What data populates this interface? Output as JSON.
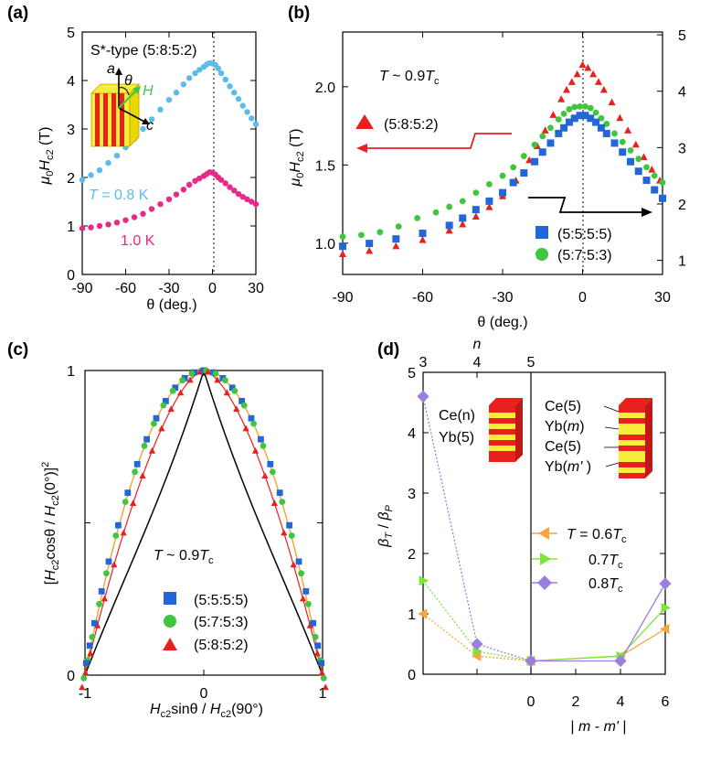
{
  "colors": {
    "sky": "#5bbcea",
    "magenta": "#e8288a",
    "red": "#e8211c",
    "green": "#3ec63e",
    "blue": "#2366d8",
    "orange": "#f4a83c",
    "lime": "#7de53a",
    "violet": "#9b7fe0",
    "black": "#000000",
    "yellow": "#f6ee3a"
  },
  "chart_data": [
    {
      "panel": "(a)",
      "type": "scatter",
      "title": "S*-type (5:8:5:2)",
      "xlabel": "θ (deg.)",
      "ylabel_parts": [
        "μ",
        "0",
        "H",
        "c2",
        " (T)"
      ],
      "xlim": [
        -90,
        30
      ],
      "ylim": [
        0,
        5
      ],
      "xticks": [
        "-90",
        "-60",
        "-30",
        "0",
        "30"
      ],
      "yticks": [
        "0",
        "1",
        "2",
        "3",
        "4",
        "5"
      ],
      "inset_axes": [
        "a",
        "θ",
        "H",
        "c"
      ],
      "series": [
        {
          "name": "T = 0.8 K",
          "label_parts": [
            "T",
            " = 0.8 K"
          ],
          "color": "sky",
          "x": [
            -90,
            -84,
            -78,
            -72,
            -66,
            -60,
            -54,
            -48,
            -42,
            -36,
            -30,
            -25,
            -20,
            -16,
            -12,
            -9,
            -6,
            -4,
            -2,
            0,
            2,
            4,
            6,
            9,
            12,
            15,
            18,
            21,
            24,
            27,
            30
          ],
          "y": [
            1.95,
            2.05,
            2.15,
            2.3,
            2.45,
            2.62,
            2.8,
            3.0,
            3.2,
            3.4,
            3.6,
            3.75,
            3.92,
            4.05,
            4.15,
            4.22,
            4.28,
            4.33,
            4.36,
            4.35,
            4.32,
            4.25,
            4.15,
            4.02,
            3.88,
            3.75,
            3.62,
            3.48,
            3.35,
            3.22,
            3.1
          ]
        },
        {
          "name": "1.0 K",
          "label_parts": [
            "1.0 K"
          ],
          "color": "magenta",
          "x": [
            -90,
            -84,
            -78,
            -72,
            -66,
            -60,
            -54,
            -48,
            -42,
            -36,
            -30,
            -25,
            -20,
            -16,
            -12,
            -9,
            -6,
            -4,
            -2,
            0,
            2,
            4,
            6,
            9,
            12,
            15,
            18,
            21,
            24,
            27,
            30
          ],
          "y": [
            0.95,
            0.97,
            1.0,
            1.03,
            1.07,
            1.12,
            1.18,
            1.25,
            1.35,
            1.45,
            1.55,
            1.65,
            1.75,
            1.85,
            1.93,
            1.98,
            2.03,
            2.07,
            2.11,
            2.1,
            2.06,
            2.0,
            1.95,
            1.88,
            1.8,
            1.73,
            1.66,
            1.6,
            1.55,
            1.5,
            1.45
          ]
        }
      ]
    },
    {
      "panel": "(b)",
      "type": "scatter",
      "annotation_parts": [
        "T",
        " ~ 0.9",
        "T",
        "c"
      ],
      "xlabel": "θ (deg.)",
      "ylabel_parts": [
        "μ",
        "0",
        "H",
        "c2",
        " (T)"
      ],
      "xlim": [
        -90,
        30
      ],
      "ylim_left": [
        0.8,
        2.35
      ],
      "ylim_right": [
        1,
        5
      ],
      "xticks": [
        "-90",
        "-60",
        "-30",
        "0",
        "30"
      ],
      "yticks_left": [
        "1.0",
        "1.5",
        "2.0"
      ],
      "yticks_right": [
        "1",
        "2",
        "3",
        "4",
        "5"
      ],
      "series": [
        {
          "name": "(5:8:5:2)",
          "marker": "triangle",
          "color": "red",
          "axis": "left",
          "x": [
            -90,
            -80,
            -70,
            -60,
            -50,
            -45,
            -40,
            -35,
            -30,
            -25,
            -20,
            -17,
            -14,
            -11,
            -8,
            -6,
            -4,
            -2,
            0,
            2,
            4,
            6,
            8,
            11,
            14,
            17,
            20,
            23,
            26,
            29
          ],
          "y": [
            0.93,
            0.95,
            0.98,
            1.02,
            1.08,
            1.12,
            1.17,
            1.23,
            1.3,
            1.4,
            1.53,
            1.62,
            1.72,
            1.82,
            1.92,
            1.98,
            2.03,
            2.08,
            2.14,
            2.12,
            2.08,
            2.03,
            1.98,
            1.9,
            1.8,
            1.72,
            1.63,
            1.55,
            1.47,
            1.4
          ]
        },
        {
          "name": "(5:7:5:3)",
          "marker": "circle",
          "color": "green",
          "axis": "right",
          "x": [
            -90,
            -83,
            -76,
            -69,
            -62,
            -55,
            -50,
            -45,
            -40,
            -35,
            -30,
            -26,
            -22,
            -18,
            -15,
            -12,
            -9,
            -7,
            -5,
            -3,
            -1,
            1,
            3,
            5,
            7,
            9,
            12,
            15,
            18,
            21,
            24,
            27,
            30
          ],
          "y": [
            1.42,
            1.45,
            1.5,
            1.6,
            1.75,
            1.85,
            1.95,
            2.05,
            2.2,
            2.35,
            2.5,
            2.65,
            2.85,
            3.05,
            3.2,
            3.35,
            3.5,
            3.6,
            3.68,
            3.72,
            3.73,
            3.73,
            3.7,
            3.62,
            3.52,
            3.42,
            3.25,
            3.1,
            2.95,
            2.8,
            2.65,
            2.5,
            2.38
          ]
        },
        {
          "name": "(5:5:5:5)",
          "marker": "square",
          "color": "blue",
          "axis": "right",
          "x": [
            -90,
            -80,
            -70,
            -60,
            -50,
            -45,
            -40,
            -35,
            -30,
            -26,
            -22,
            -18,
            -15,
            -12,
            -9,
            -7,
            -5,
            -3,
            -1,
            1,
            3,
            5,
            7,
            9,
            12,
            15,
            18,
            21,
            24,
            27,
            30
          ],
          "y": [
            1.25,
            1.3,
            1.38,
            1.48,
            1.62,
            1.75,
            1.9,
            2.05,
            2.2,
            2.38,
            2.55,
            2.75,
            2.92,
            3.08,
            3.25,
            3.35,
            3.45,
            3.52,
            3.57,
            3.57,
            3.52,
            3.45,
            3.35,
            3.25,
            3.08,
            2.92,
            2.75,
            2.58,
            2.42,
            2.25,
            2.1
          ]
        }
      ]
    },
    {
      "panel": "(c)",
      "type": "scatter",
      "annotation_parts": [
        "T",
        " ~ 0.9",
        "T",
        "c"
      ],
      "xlabel_parts": [
        "H",
        "c2",
        "sinθ / ",
        "H",
        "c2",
        "(90°)"
      ],
      "ylabel_parts": [
        "[",
        "H",
        "c2",
        "cosθ / ",
        "H",
        "c2",
        "(0°)]",
        "2"
      ],
      "xlim": [
        -1,
        1
      ],
      "ylim": [
        0,
        1
      ],
      "xticks": [
        "-1",
        "0",
        "1"
      ],
      "yticks": [
        "0",
        "1"
      ],
      "series": [
        {
          "name": "(5:5:5:5)",
          "marker": "square",
          "color": "blue"
        },
        {
          "name": "(5:7:5:3)",
          "marker": "circle",
          "color": "green"
        },
        {
          "name": "(5:8:5:2)",
          "marker": "triangle",
          "color": "red"
        }
      ],
      "curves": [
        "black",
        "orange",
        "red"
      ]
    },
    {
      "panel": "(d)",
      "type": "line",
      "ylabel_parts": [
        "β",
        "T",
        " / ",
        "β",
        "P"
      ],
      "xlabel_parts": [
        "| ",
        "m",
        " - ",
        "m'",
        " |"
      ],
      "top_axis_label": "n",
      "top_ticks": [
        "3",
        "4",
        "5"
      ],
      "bottom_ticks": [
        "0",
        "2",
        "4",
        "6"
      ],
      "ylim": [
        0,
        5
      ],
      "yticks": [
        "0",
        "1",
        "2",
        "3",
        "4",
        "5"
      ],
      "inset_left_labels": [
        "Ce(n)",
        "Yb(5)"
      ],
      "inset_right_labels": [
        "Ce(5)",
        "Yb(m)",
        "Ce(5)",
        "Yb(m' )"
      ],
      "series": [
        {
          "name": "T = 0.6Tc",
          "legend_parts": [
            "T",
            " = 0.6",
            "T",
            "c"
          ],
          "marker": "triangle-left",
          "color": "orange",
          "left_n": [
            3,
            4,
            5
          ],
          "left_y": [
            1.0,
            0.3,
            0.22
          ],
          "right_m": [
            0,
            4,
            6
          ],
          "right_y": [
            0.22,
            0.3,
            0.75
          ]
        },
        {
          "name": "0.7Tc",
          "legend_parts": [
            "0.7",
            "T",
            "c"
          ],
          "marker": "triangle-right",
          "color": "lime",
          "left_n": [
            3,
            4,
            5
          ],
          "left_y": [
            1.55,
            0.38,
            0.22
          ],
          "right_m": [
            0,
            4,
            6
          ],
          "right_y": [
            0.22,
            0.3,
            1.1
          ]
        },
        {
          "name": "0.8Tc",
          "legend_parts": [
            "0.8",
            "T",
            "c"
          ],
          "marker": "diamond",
          "color": "violet",
          "left_n": [
            3,
            4,
            5
          ],
          "left_y": [
            4.6,
            0.5,
            0.22
          ],
          "right_m": [
            0,
            4,
            6
          ],
          "right_y": [
            0.22,
            0.22,
            1.5
          ]
        }
      ]
    }
  ]
}
